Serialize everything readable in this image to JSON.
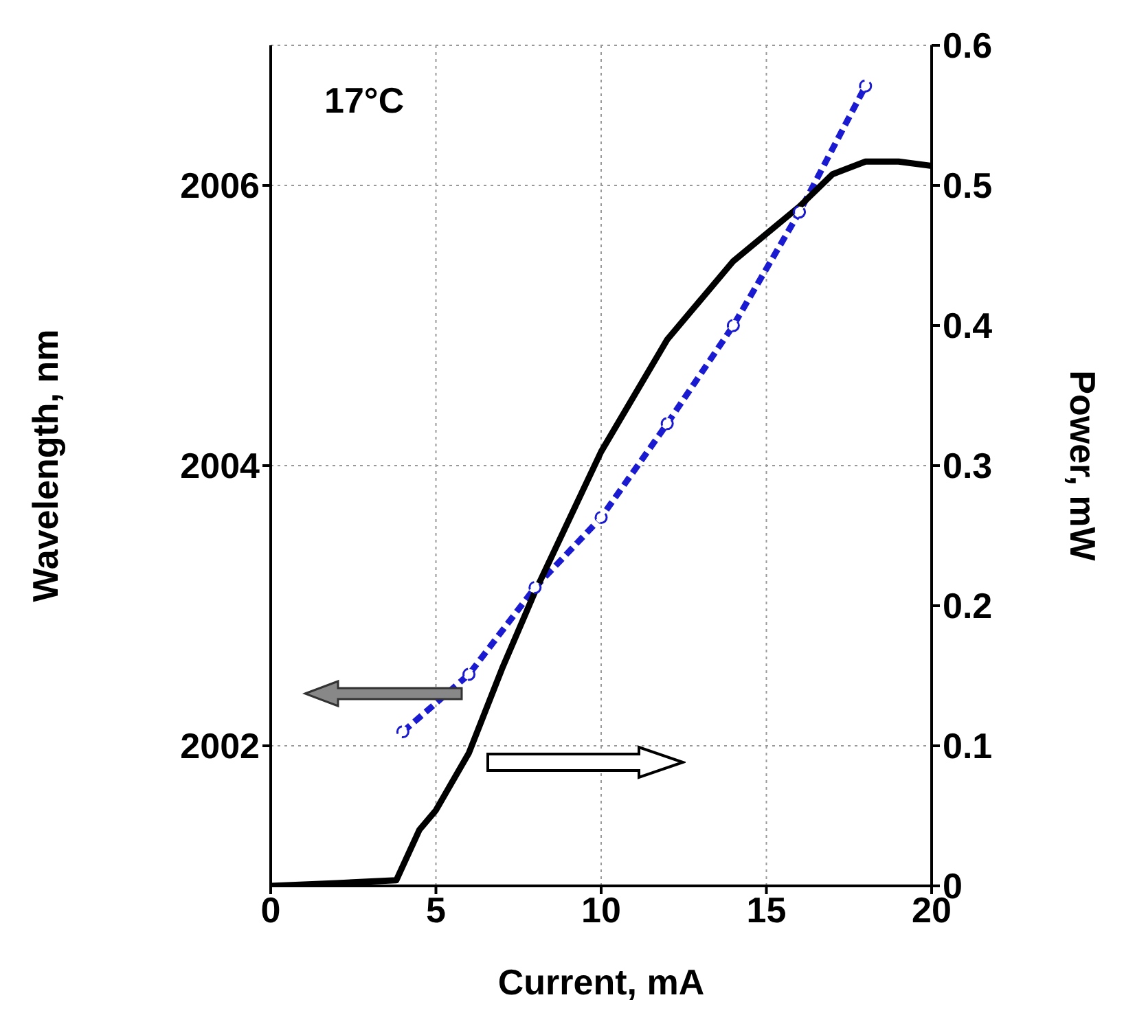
{
  "chart_data": {
    "type": "line",
    "xlabel": "Current, mA",
    "ylabel": "Wavelength, nm",
    "y2label": "Power, mW",
    "annotations": [
      "17°C"
    ],
    "xlim": [
      0,
      20
    ],
    "xticks": [
      0,
      5,
      10,
      15,
      20
    ],
    "ylim": [
      2001,
      2007
    ],
    "yticks": [
      2002,
      2004,
      2006
    ],
    "y2lim": [
      0,
      0.6
    ],
    "y2ticks": [
      0,
      0.1,
      0.2,
      0.3,
      0.4,
      0.5,
      0.6
    ],
    "grid": true,
    "series": [
      {
        "color": "#1a1ad0",
        "marker": "circle",
        "line_style": "dashed",
        "x": [
          4,
          6,
          8,
          10,
          12,
          14,
          16,
          18
        ],
        "values": [
          2002.1,
          2002.51,
          2003.13,
          2003.63,
          2004.3,
          2005.0,
          2005.81,
          2006.71
        ]
      },
      {
        "color": "#000000",
        "marker": "none",
        "line_style": "solid",
        "axis": "y2",
        "x": [
          0,
          2,
          3.8,
          4.5,
          5,
          6,
          7,
          8,
          10,
          12,
          14,
          16,
          17,
          18,
          19,
          20
        ],
        "values": [
          0,
          0.002,
          0.004,
          0.04,
          0.054,
          0.095,
          0.155,
          0.21,
          0.31,
          0.39,
          0.446,
          0.485,
          0.508,
          0.517,
          0.517,
          0.514
        ]
      }
    ]
  }
}
